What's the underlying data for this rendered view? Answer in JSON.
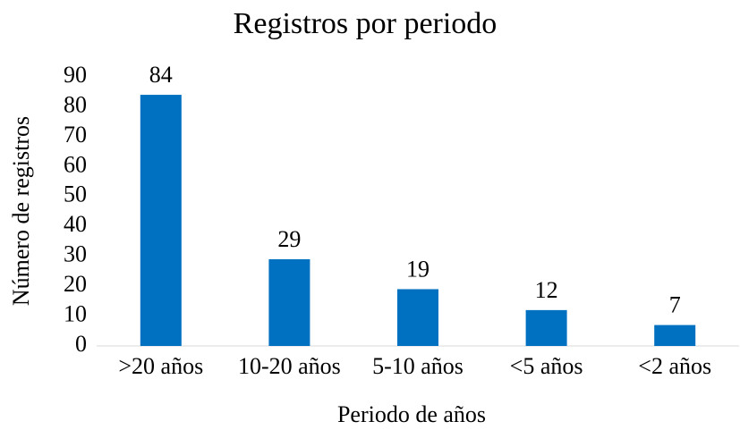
{
  "chart_data": {
    "type": "bar",
    "title": "Registros por periodo",
    "x_label": "Periodo de años",
    "y_label": "Número de registros",
    "categories": [
      ">20 años",
      "10-20 años",
      "5-10 años",
      "<5 años",
      "<2 años"
    ],
    "values": [
      84,
      29,
      19,
      12,
      7
    ],
    "color": "#0070c0",
    "ylim": [
      0,
      90
    ],
    "yticks": [
      0,
      10,
      20,
      30,
      40,
      50,
      60,
      70,
      80,
      90
    ],
    "grid": false
  }
}
